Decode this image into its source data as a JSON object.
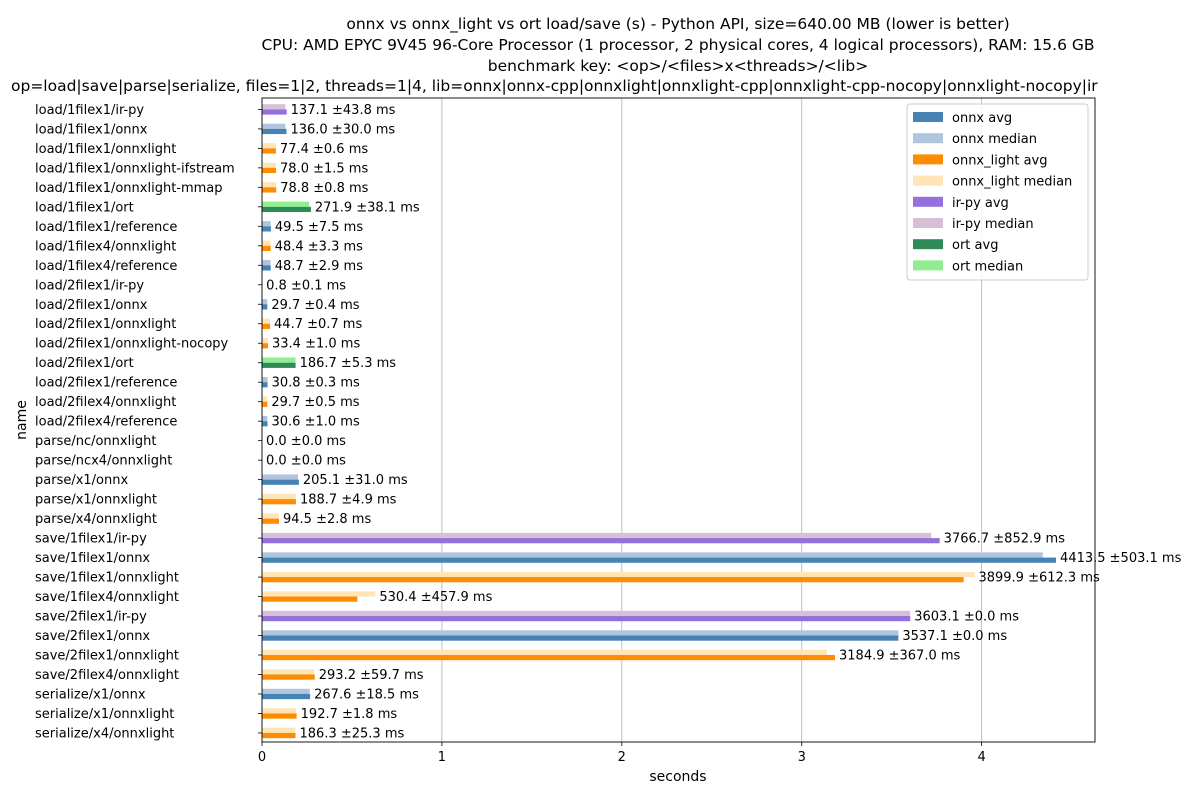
{
  "chart_data": {
    "type": "bar",
    "orientation": "horizontal",
    "title_lines": [
      "onnx vs onnx_light vs ort load/save (s) - Python API, size=640.00 MB (lower is better)",
      "CPU: AMD EPYC 9V45 96-Core Processor (1 processor, 2 physical cores, 4 logical processors), RAM: 15.6 GB",
      "benchmark key: <op>/<files>x<threads>/<lib>",
      "op=load|save|parse|serialize, files=1|2, threads=1|4, lib=onnx|onnx-cpp|onnxlight|onnxlight-cpp|onnxlight-cpp-nocopy|onnxlight-nocopy|ir"
    ],
    "xlabel": "seconds",
    "ylabel": "name",
    "xlim": [
      0,
      4.63
    ],
    "x_ticks": [
      0,
      1,
      2,
      3,
      4
    ],
    "grid": "x",
    "legend_position": "top-right",
    "legend": [
      {
        "label": "onnx avg",
        "color": "#4682b4"
      },
      {
        "label": "onnx median",
        "color": "#b0c4de"
      },
      {
        "label": "onnx_light avg",
        "color": "#ff8c00"
      },
      {
        "label": "onnx_light median",
        "color": "#ffe4b5"
      },
      {
        "label": "ir-py avg",
        "color": "#9370db"
      },
      {
        "label": "ir-py median",
        "color": "#d8bfd8"
      },
      {
        "label": "ort avg",
        "color": "#2e8b57"
      },
      {
        "label": "ort median",
        "color": "#90ee90"
      }
    ],
    "rows": [
      {
        "name": "load/1filex1/ir-py",
        "lib": "ir-py",
        "avg": 0.1371,
        "median": 0.13,
        "label": "137.1 ±43.8 ms"
      },
      {
        "name": "load/1filex1/onnx",
        "lib": "onnx",
        "avg": 0.136,
        "median": 0.13,
        "label": "136.0 ±30.0 ms"
      },
      {
        "name": "load/1filex1/onnxlight",
        "lib": "onnx_light",
        "avg": 0.0774,
        "median": 0.077,
        "label": "77.4 ±0.6 ms"
      },
      {
        "name": "load/1filex1/onnxlight-ifstream",
        "lib": "onnx_light",
        "avg": 0.078,
        "median": 0.078,
        "label": "78.0 ±1.5 ms"
      },
      {
        "name": "load/1filex1/onnxlight-mmap",
        "lib": "onnx_light",
        "avg": 0.0788,
        "median": 0.079,
        "label": "78.8 ±0.8 ms"
      },
      {
        "name": "load/1filex1/ort",
        "lib": "ort",
        "avg": 0.2719,
        "median": 0.262,
        "label": "271.9 ±38.1 ms"
      },
      {
        "name": "load/1filex1/reference",
        "lib": "onnx",
        "avg": 0.0495,
        "median": 0.048,
        "label": "49.5 ±7.5 ms"
      },
      {
        "name": "load/1filex4/onnxlight",
        "lib": "onnx_light",
        "avg": 0.0484,
        "median": 0.048,
        "label": "48.4 ±3.3 ms"
      },
      {
        "name": "load/1filex4/reference",
        "lib": "onnx",
        "avg": 0.0487,
        "median": 0.048,
        "label": "48.7 ±2.9 ms"
      },
      {
        "name": "load/2filex1/ir-py",
        "lib": "ir-py",
        "avg": 0.0008,
        "median": 0.0008,
        "label": "0.8 ±0.1 ms"
      },
      {
        "name": "load/2filex1/onnx",
        "lib": "onnx",
        "avg": 0.0297,
        "median": 0.029,
        "label": "29.7 ±0.4 ms"
      },
      {
        "name": "load/2filex1/onnxlight",
        "lib": "onnx_light",
        "avg": 0.0447,
        "median": 0.044,
        "label": "44.7 ±0.7 ms"
      },
      {
        "name": "load/2filex1/onnxlight-nocopy",
        "lib": "onnx_light",
        "avg": 0.0334,
        "median": 0.033,
        "label": "33.4 ±1.0 ms"
      },
      {
        "name": "load/2filex1/ort",
        "lib": "ort",
        "avg": 0.1867,
        "median": 0.186,
        "label": "186.7 ±5.3 ms"
      },
      {
        "name": "load/2filex1/reference",
        "lib": "onnx",
        "avg": 0.0308,
        "median": 0.031,
        "label": "30.8 ±0.3 ms"
      },
      {
        "name": "load/2filex4/onnxlight",
        "lib": "onnx_light",
        "avg": 0.0297,
        "median": 0.029,
        "label": "29.7 ±0.5 ms"
      },
      {
        "name": "load/2filex4/reference",
        "lib": "onnx",
        "avg": 0.0306,
        "median": 0.03,
        "label": "30.6 ±1.0 ms"
      },
      {
        "name": "parse/nc/onnxlight",
        "lib": "onnx_light",
        "avg": 0.0,
        "median": 0.0,
        "label": "0.0 ±0.0 ms"
      },
      {
        "name": "parse/ncx4/onnxlight",
        "lib": "onnx_light",
        "avg": 0.0,
        "median": 0.0,
        "label": "0.0 ±0.0 ms"
      },
      {
        "name": "parse/x1/onnx",
        "lib": "onnx",
        "avg": 0.2051,
        "median": 0.2,
        "label": "205.1 ±31.0 ms"
      },
      {
        "name": "parse/x1/onnxlight",
        "lib": "onnx_light",
        "avg": 0.1887,
        "median": 0.188,
        "label": "188.7 ±4.9 ms"
      },
      {
        "name": "parse/x4/onnxlight",
        "lib": "onnx_light",
        "avg": 0.0945,
        "median": 0.094,
        "label": "94.5 ±2.8 ms"
      },
      {
        "name": "save/1filex1/ir-py",
        "lib": "ir-py",
        "avg": 3.7667,
        "median": 3.72,
        "label": "3766.7 ±852.9 ms"
      },
      {
        "name": "save/1filex1/onnx",
        "lib": "onnx",
        "avg": 4.4135,
        "median": 4.34,
        "label": "4413.5 ±503.1 ms"
      },
      {
        "name": "save/1filex1/onnxlight",
        "lib": "onnx_light",
        "avg": 3.8999,
        "median": 3.96,
        "label": "3899.9 ±612.3 ms"
      },
      {
        "name": "save/1filex4/onnxlight",
        "lib": "onnx_light",
        "avg": 0.5304,
        "median": 0.63,
        "label": "530.4 ±457.9 ms"
      },
      {
        "name": "save/2filex1/ir-py",
        "lib": "ir-py",
        "avg": 3.6031,
        "median": 3.6031,
        "label": "3603.1 ±0.0 ms"
      },
      {
        "name": "save/2filex1/onnx",
        "lib": "onnx",
        "avg": 3.5371,
        "median": 3.5371,
        "label": "3537.1 ±0.0 ms"
      },
      {
        "name": "save/2filex1/onnxlight",
        "lib": "onnx_light",
        "avg": 3.1849,
        "median": 3.14,
        "label": "3184.9 ±367.0 ms"
      },
      {
        "name": "save/2filex4/onnxlight",
        "lib": "onnx_light",
        "avg": 0.2932,
        "median": 0.29,
        "label": "293.2 ±59.7 ms"
      },
      {
        "name": "serialize/x1/onnx",
        "lib": "onnx",
        "avg": 0.2676,
        "median": 0.265,
        "label": "267.6 ±18.5 ms"
      },
      {
        "name": "serialize/x1/onnxlight",
        "lib": "onnx_light",
        "avg": 0.1927,
        "median": 0.19,
        "label": "192.7 ±1.8 ms"
      },
      {
        "name": "serialize/x4/onnxlight",
        "lib": "onnx_light",
        "avg": 0.1863,
        "median": 0.185,
        "label": "186.3 ±25.3 ms"
      }
    ]
  }
}
